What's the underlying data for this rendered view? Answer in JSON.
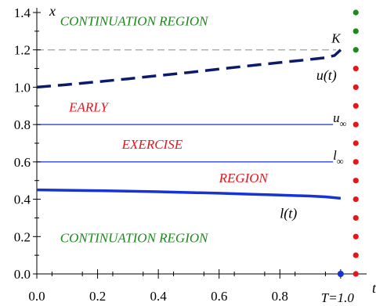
{
  "chart_data": {
    "type": "line",
    "title": "",
    "xlabel": "t",
    "ylabel": "x",
    "xlim": [
      0.0,
      1.07
    ],
    "ylim": [
      0.0,
      1.4
    ],
    "x_ticks": [
      "0.0",
      "0.2",
      "0.4",
      "0.6",
      "0.8"
    ],
    "T_tick_label": "T=1.0",
    "y_ticks": [
      "0.0",
      "0.2",
      "0.4",
      "0.6",
      "0.8",
      "1.0",
      "1.2",
      "1.4"
    ],
    "grid": false,
    "K_level": {
      "y": 1.2,
      "label": "K",
      "color": "#a0a0a0"
    },
    "u_inf_level": {
      "y": 0.8,
      "label": "u",
      "subscript": "∞"
    },
    "l_inf_level": {
      "y": 0.6,
      "label": "l",
      "subscript": "∞"
    },
    "series": [
      {
        "name": "u(t)",
        "style": "dashed",
        "color": "#0b1a6b",
        "x": [
          0.0,
          0.1,
          0.2,
          0.3,
          0.4,
          0.5,
          0.6,
          0.7,
          0.8,
          0.9,
          0.95,
          0.98,
          1.0
        ],
        "y": [
          1.0,
          1.014,
          1.029,
          1.045,
          1.062,
          1.079,
          1.097,
          1.115,
          1.132,
          1.149,
          1.158,
          1.17,
          1.2
        ]
      },
      {
        "name": "l(t)",
        "style": "solid",
        "color": "#1533d6",
        "x": [
          0.0,
          0.1,
          0.2,
          0.3,
          0.4,
          0.5,
          0.6,
          0.7,
          0.8,
          0.9,
          0.95,
          1.0
        ],
        "y": [
          0.45,
          0.448,
          0.446,
          0.443,
          0.44,
          0.436,
          0.432,
          0.427,
          0.422,
          0.417,
          0.413,
          0.405
        ]
      }
    ],
    "dots": {
      "x": 1.05,
      "y_values": [
        0.0,
        0.1,
        0.2,
        0.3,
        0.4,
        0.5,
        0.6,
        0.7,
        0.8,
        0.9,
        1.0,
        1.1,
        1.2,
        1.3,
        1.4
      ],
      "colors": [
        "#e8141c",
        "#e8141c",
        "#e8141c",
        "#e8141c",
        "#e8141c",
        "#e8141c",
        "#e8141c",
        "#e8141c",
        "#e8141c",
        "#e8141c",
        "#e8141c",
        "#e8141c",
        "#1a8a1a",
        "#1a8a1a",
        "#1a8a1a"
      ]
    },
    "terminal_point": {
      "x": 1.0,
      "y": 0.0,
      "color": "#1533d6"
    },
    "annotations": [
      {
        "text": "CONTINUATION REGION",
        "x": 0.32,
        "y": 1.33,
        "color": "#1a8a1a"
      },
      {
        "text": "EARLY",
        "x": 0.17,
        "y": 0.87,
        "color": "#e8141c"
      },
      {
        "text": "EXERCISE",
        "x": 0.38,
        "y": 0.67,
        "color": "#e8141c"
      },
      {
        "text": "REGION",
        "x": 0.68,
        "y": 0.49,
        "color": "#e8141c"
      },
      {
        "text": "CONTINUATION REGION",
        "x": 0.32,
        "y": 0.17,
        "color": "#1a8a1a"
      }
    ]
  }
}
